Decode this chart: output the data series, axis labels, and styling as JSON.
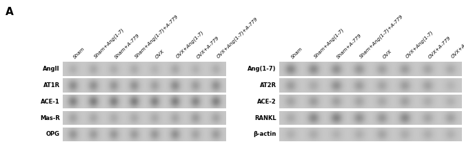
{
  "title_label": "A",
  "col_labels": [
    "Sham",
    "Sham+Ang(1-7)",
    "Sham+A-779",
    "Sham+Ang(1-7)+A-779",
    "OVX",
    "OVX+Ang(1-7)",
    "OVX+A-779",
    "OVX+Ang(1-7)+A-779"
  ],
  "left_row_labels": [
    "AngII",
    "AT1R",
    "ACE-1",
    "Mas-R",
    "OPG"
  ],
  "right_row_labels": [
    "Ang(1-7)",
    "AT2R",
    "ACE-2",
    "RANKL",
    "β-actin"
  ],
  "panel_bg": "#ffffff",
  "blot_bg": "#cccccc",
  "blot_bg_alt": "#c8c8c8",
  "band_dark": 0.08,
  "left_band_data": [
    [
      0.12,
      0.15,
      0.13,
      0.14,
      0.1,
      0.16,
      0.11,
      0.13
    ],
    [
      0.3,
      0.28,
      0.25,
      0.27,
      0.2,
      0.3,
      0.22,
      0.28
    ],
    [
      0.35,
      0.38,
      0.36,
      0.38,
      0.35,
      0.37,
      0.33,
      0.36
    ],
    [
      0.18,
      0.16,
      0.14,
      0.15,
      0.15,
      0.17,
      0.22,
      0.18
    ],
    [
      0.25,
      0.22,
      0.24,
      0.22,
      0.24,
      0.28,
      0.18,
      0.22
    ]
  ],
  "right_band_data": [
    [
      0.32,
      0.3,
      0.28,
      0.25,
      0.2,
      0.22,
      0.18,
      0.15
    ],
    [
      0.22,
      0.15,
      0.28,
      0.22,
      0.18,
      0.22,
      0.2,
      0.1
    ],
    [
      0.18,
      0.22,
      0.2,
      0.18,
      0.16,
      0.2,
      0.14,
      0.12
    ],
    [
      0.15,
      0.32,
      0.35,
      0.28,
      0.25,
      0.32,
      0.18,
      0.2
    ],
    [
      0.12,
      0.14,
      0.11,
      0.13,
      0.18,
      0.14,
      0.13,
      0.12
    ]
  ]
}
